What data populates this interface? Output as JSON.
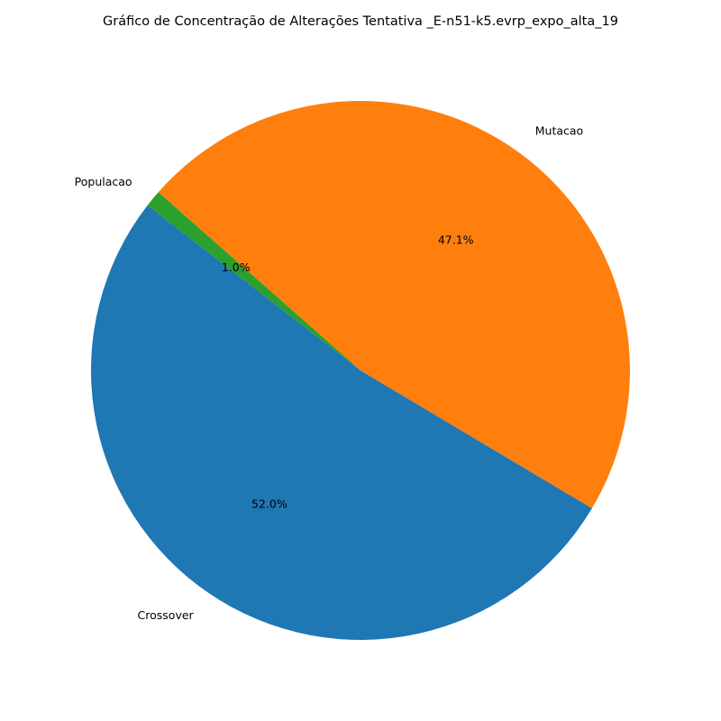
{
  "chart_data": {
    "type": "pie",
    "title": "Gráfico de Concentração de Alterações Tentativa _E-n51-k5.evrp_expo_alta_19",
    "slices": [
      {
        "label": "Crossover",
        "value": 52.0,
        "pct_label": "52.0%",
        "color": "#1f77b4"
      },
      {
        "label": "Mutacao",
        "value": 47.1,
        "pct_label": "47.1%",
        "color": "#ff7f0e"
      },
      {
        "label": "Populacao",
        "value": 1.0,
        "pct_label": "1.0%",
        "color": "#2ca02c"
      }
    ]
  }
}
